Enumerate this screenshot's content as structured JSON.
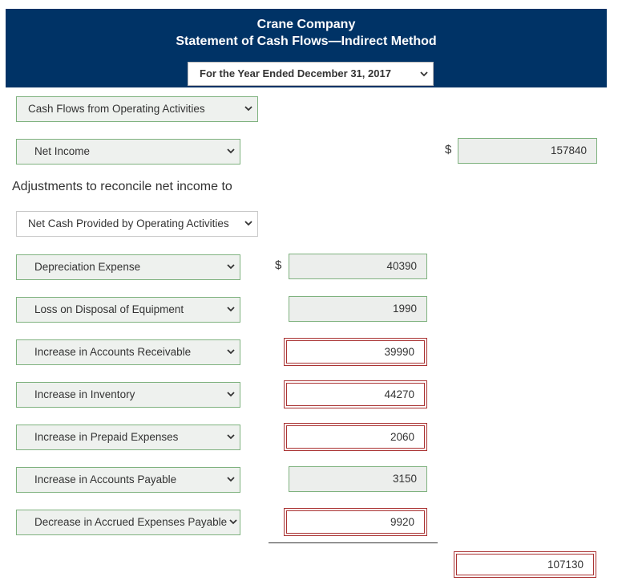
{
  "header": {
    "company": "Crane Company",
    "statement": "Statement of Cash Flows—Indirect Method",
    "period": "For the Year Ended December 31, 2017"
  },
  "section_select": "Cash Flows from Operating Activities",
  "net_income": {
    "label": "Net Income",
    "currency": "$",
    "value": "157840"
  },
  "adjustments_label": "Adjustments to reconcile net income to",
  "adjustments_select": "Net Cash Provided by Operating Activities",
  "adjustments": [
    {
      "label": "Depreciation Expense",
      "value": "40390",
      "currency": "$"
    },
    {
      "label": "Loss on Disposal of Equipment",
      "value": "1990"
    },
    {
      "label": "Increase in Accounts Receivable",
      "value": "39990"
    },
    {
      "label": "Increase in Inventory",
      "value": "44270"
    },
    {
      "label": "Increase in Prepaid Expenses",
      "value": "2060"
    },
    {
      "label": "Increase in Accounts Payable",
      "value": "3150"
    },
    {
      "label": "Decrease in Accrued Expenses Payable",
      "value": "9920"
    }
  ],
  "total": {
    "value": "107130"
  },
  "colors": {
    "header_bg": "#003366",
    "field_border": "#7fb27f",
    "error_border": "#aa3333"
  }
}
